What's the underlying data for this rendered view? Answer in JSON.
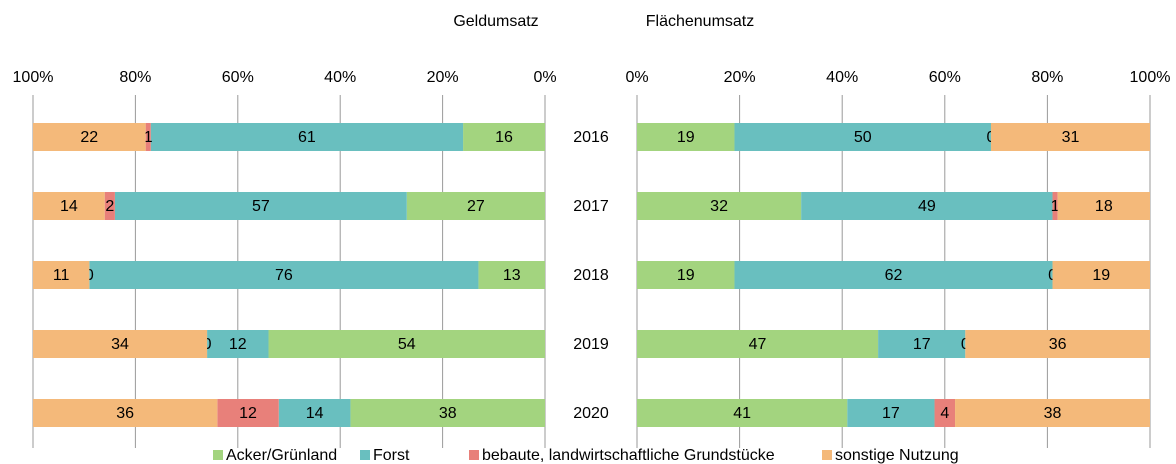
{
  "chart_data": [
    {
      "type": "stacked-bar-horizontal",
      "title": "Geldumsatz",
      "categories": [
        "2016",
        "2017",
        "2018",
        "2019",
        "2020"
      ],
      "series": [
        {
          "name": "Acker/Grünland",
          "color": "#a3d47f",
          "values": [
            16,
            27,
            13,
            54,
            38
          ]
        },
        {
          "name": "Forst",
          "color": "#69bfbf",
          "values": [
            61,
            57,
            76,
            12,
            14
          ]
        },
        {
          "name": "bebaute, landwirtschaftliche Grundstücke",
          "color": "#e8807a",
          "values": [
            1,
            2,
            0,
            0,
            12
          ]
        },
        {
          "name": "sonstige Nutzung",
          "color": "#f4b97a",
          "values": [
            22,
            14,
            11,
            34,
            36
          ]
        }
      ],
      "xlim": [
        100,
        0
      ],
      "xticks": [
        {
          "value": 100,
          "label": "100%"
        },
        {
          "value": 80,
          "label": "80%"
        },
        {
          "value": 60,
          "label": "60%"
        },
        {
          "value": 40,
          "label": "40%"
        },
        {
          "value": 20,
          "label": "20%"
        },
        {
          "value": 0,
          "label": "0%"
        }
      ],
      "grid": true
    },
    {
      "type": "stacked-bar-horizontal",
      "title": "Flächenumsatz",
      "series": [
        {
          "name": "Acker/Grünland",
          "color": "#a3d47f",
          "values": [
            19,
            32,
            19,
            47,
            41
          ]
        },
        {
          "name": "Forst",
          "color": "#69bfbf",
          "values": [
            50,
            49,
            62,
            17,
            17
          ]
        },
        {
          "name": "bebaute, landwirtschaftliche Grundstücke",
          "color": "#e8807a",
          "values": [
            0,
            1,
            0,
            0,
            4
          ]
        },
        {
          "name": "sonstige Nutzung",
          "color": "#f4b97a",
          "values": [
            31,
            18,
            19,
            36,
            38
          ]
        }
      ],
      "xlim": [
        0,
        100
      ],
      "xticks": [
        {
          "value": 0,
          "label": "0%"
        },
        {
          "value": 20,
          "label": "20%"
        },
        {
          "value": 40,
          "label": "40%"
        },
        {
          "value": 60,
          "label": "60%"
        },
        {
          "value": 80,
          "label": "80%"
        },
        {
          "value": 100,
          "label": "100%"
        }
      ],
      "grid": true
    }
  ]
}
